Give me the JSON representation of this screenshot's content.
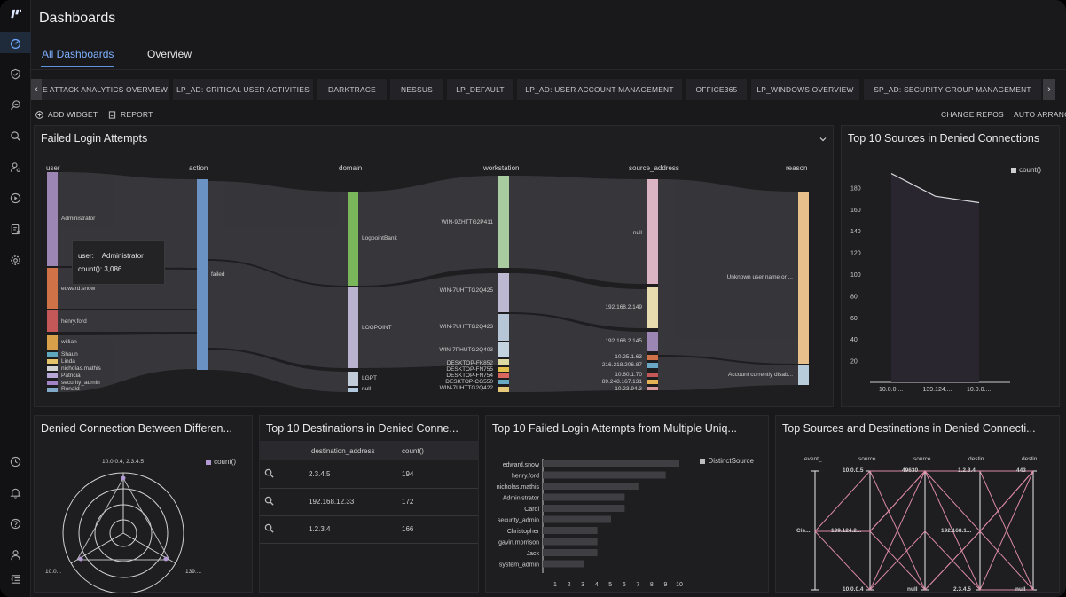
{
  "app": {
    "title": "Dashboards",
    "tabs": [
      {
        "label": "All Dashboards",
        "active": true
      },
      {
        "label": "Overview",
        "active": false
      }
    ]
  },
  "rail_icons": [
    "logo-icon",
    "dashboard-gauge-icon",
    "shield-icon",
    "investigate-icon",
    "search-icon",
    "user-gear-icon",
    "play-circle-icon",
    "report-icon",
    "settings-icon",
    "clock-icon",
    "bell-icon",
    "help-icon",
    "user-icon",
    "menu-collapse-icon"
  ],
  "dashboard_tabs": [
    "E ATTACK ANALYTICS OVERVIEW",
    "LP_AD: CRITICAL USER ACTIVITIES",
    "DARKTRACE",
    "NESSUS",
    "LP_DEFAULT",
    "LP_AD: USER ACCOUNT MANAGEMENT",
    "OFFICE365",
    "LP_WINDOWS OVERVIEW",
    "SP_AD: SECURITY GROUP MANAGEMENT"
  ],
  "toolbar": {
    "add_widget": "ADD WIDGET",
    "report": "REPORT",
    "change_repos": "CHANGE REPOS",
    "auto_arrange": "AUTO ARRANGE"
  },
  "colors": {
    "accent": "#7eb0ff",
    "panel": "#1e1e21",
    "bg": "#19191b"
  },
  "failed_logins": {
    "title": "Failed Login Attempts",
    "columns": [
      "user",
      "action",
      "domain",
      "workstation",
      "source_address",
      "reason"
    ],
    "user_nodes": [
      {
        "label": "Administrator",
        "color": "#9c86b3"
      },
      {
        "label": "edward.snow",
        "color": "#cf7248"
      },
      {
        "label": "henry.ford",
        "color": "#c45757"
      },
      {
        "label": "willian",
        "color": "#d8a048"
      },
      {
        "label": "Shaun",
        "color": "#5ea7bd"
      },
      {
        "label": "Linda",
        "color": "#e5c46a"
      },
      {
        "label": "nicholas.mathis",
        "color": "#d2d2d2"
      },
      {
        "label": "Patricia",
        "color": "#b8a7d6"
      },
      {
        "label": "security_admin",
        "color": "#a384c6"
      },
      {
        "label": "Ronald",
        "color": "#7fa9c7"
      }
    ],
    "action_nodes": [
      {
        "label": "failed",
        "color": "#6a93c4"
      }
    ],
    "domain_nodes": [
      {
        "label": "LogpointBank",
        "color": "#79b75a"
      },
      {
        "label": "LOGPOINT",
        "color": "#b9b3cf"
      },
      {
        "label": "LGPT",
        "color": "#c2ccd8"
      },
      {
        "label": "null",
        "color": "#b2c8dd"
      }
    ],
    "workstation_nodes": [
      {
        "label": "WIN-9ZHTTG2P411",
        "color": "#a9cba0"
      },
      {
        "label": "WIN-7UHTTG2Q425",
        "color": "#bcb8d2"
      },
      {
        "label": "WIN-7UHTTG2Q423",
        "color": "#b6c6d6"
      },
      {
        "label": "WIN-7PHUTG2Q403",
        "color": "#c4d3e0"
      },
      {
        "label": "DESKTOP-FK852",
        "color": "#dcd9a2"
      },
      {
        "label": "DESKTOP-FN755",
        "color": "#e3c04b"
      },
      {
        "label": "DESKTOP-FN754",
        "color": "#d9675f"
      },
      {
        "label": "DESKTOP-CG550",
        "color": "#69a9c3"
      },
      {
        "label": "WIN-7UHTTG2Q422",
        "color": "#e6c87a"
      }
    ],
    "source_nodes": [
      {
        "label": "null",
        "color": "#dab4c3"
      },
      {
        "label": "192.168.2.149",
        "color": "#e6dcb0"
      },
      {
        "label": "192.168.2.145",
        "color": "#9c86b3"
      },
      {
        "label": "10.25.1.63",
        "color": "#cf7248"
      },
      {
        "label": "216.218.206.87",
        "color": "#6aa7c4"
      },
      {
        "label": "10.60.1.70",
        "color": "#c45757"
      },
      {
        "label": "89.248.167.131",
        "color": "#e5b455"
      },
      {
        "label": "10.23.94.3",
        "color": "#d89b9b"
      }
    ],
    "reason_nodes": [
      {
        "label": "Unknown user name or ...",
        "color": "#e7c08c"
      },
      {
        "label": "Account currently disab...",
        "color": "#b8cbdb"
      }
    ],
    "tooltip": {
      "key_label": "user:",
      "key_value": "Administrator",
      "count_label": "count():",
      "count_value": "3,086"
    }
  },
  "top_sources": {
    "title": "Top 10 Sources in Denied Connections",
    "legend": "count()",
    "chart_data": {
      "type": "area",
      "categories": [
        "10.0.0....",
        "139.124....",
        "10.0.0...."
      ],
      "values": [
        193,
        172,
        166
      ],
      "ylim": [
        0,
        200
      ],
      "yticks": [
        20,
        40,
        60,
        80,
        100,
        120,
        140,
        160,
        180
      ],
      "legend_position": "top-right"
    }
  },
  "denied_between": {
    "title": "Denied Connection Between Differen...",
    "legend": "count()",
    "axis_labels": [
      "10.0.0.4, 2.3.4.5",
      "10.0...",
      "139...."
    ]
  },
  "top_destinations": {
    "title": "Top 10 Destinations in Denied Conne...",
    "headers": [
      "destination_address",
      "count()"
    ],
    "rows": [
      {
        "address": "2.3.4.5",
        "count": "194"
      },
      {
        "address": "192.168.12.33",
        "count": "172"
      },
      {
        "address": "1.2.3.4",
        "count": "166"
      }
    ]
  },
  "failed_multi": {
    "title": "Top 10 Failed Login Attempts from Multiple Uniq...",
    "legend": "DistinctSource",
    "chart_data": {
      "type": "bar",
      "orientation": "horizontal",
      "categories": [
        "edward.snow",
        "henry.ford",
        "nicholas.mathis",
        "Administrator",
        "Carol",
        "security_admin",
        "Christopher",
        "gavin.morrison",
        "Jack",
        "system_admin"
      ],
      "values": [
        10,
        9,
        7,
        6,
        6,
        5,
        4,
        4,
        4,
        3
      ],
      "xlim": [
        0,
        10
      ],
      "xticks": [
        1,
        2,
        3,
        4,
        5,
        6,
        7,
        8,
        9,
        10
      ],
      "legend_position": "top-right"
    }
  },
  "top_src_dst": {
    "title": "Top Sources and Destinations in Denied Connecti...",
    "axes": [
      "event_...",
      "source...",
      "source...",
      "destin...",
      "destin..."
    ],
    "labels": [
      {
        "text": "10.0.0.5"
      },
      {
        "text": "Cis..."
      },
      {
        "text": "139.124.2..."
      },
      {
        "text": "10.0.0.4"
      },
      {
        "text": "49630"
      },
      {
        "text": "null"
      },
      {
        "text": "1.2.3.4"
      },
      {
        "text": "192.168.1..."
      },
      {
        "text": "2.3.4.5"
      },
      {
        "text": "443"
      },
      {
        "text": "null"
      }
    ]
  }
}
